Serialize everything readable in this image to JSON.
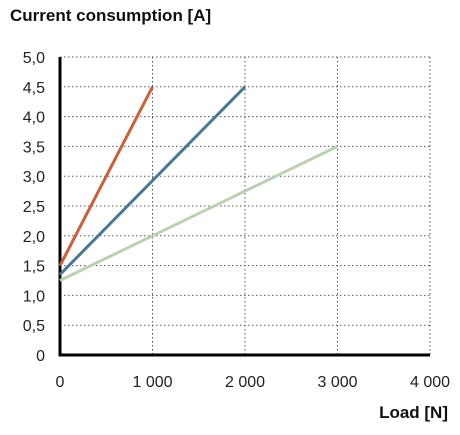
{
  "chart_data": {
    "type": "line",
    "ylabel": "Current consumption [A]",
    "xlabel": "Load [N]",
    "xlim": [
      0,
      4000
    ],
    "ylim": [
      0,
      5
    ],
    "grid": true,
    "x_ticks": [
      "0",
      "1 000",
      "2 000",
      "3 000",
      "4 000"
    ],
    "y_ticks": [
      "0",
      "0,5",
      "1,0",
      "1,5",
      "2,0",
      "2,5",
      "3,0",
      "3,5",
      "4,0",
      "4,5",
      "5,0"
    ],
    "series": [
      {
        "color": "#c9603a",
        "x": [
          0,
          1000
        ],
        "y": [
          1.5,
          4.5
        ]
      },
      {
        "color": "#4a7892",
        "x": [
          0,
          2000
        ],
        "y": [
          1.35,
          4.5
        ]
      },
      {
        "color": "#b8d2b2",
        "x": [
          0,
          3000
        ],
        "y": [
          1.25,
          3.5
        ]
      }
    ]
  }
}
